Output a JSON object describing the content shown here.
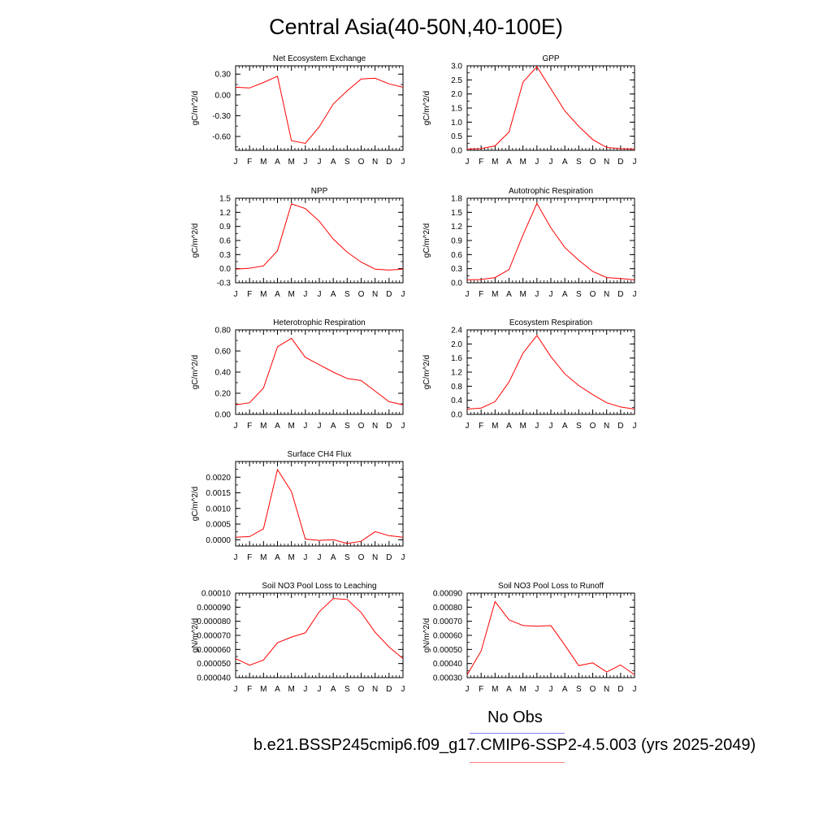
{
  "title": "Central Asia(40-50N,40-100E)",
  "legend": {
    "obs_label": "No Obs",
    "model_label": "b.e21.BSSP245cmip6.f09_g17.CMIP6-SSP2-4.5.003 (yrs 2025-2049)",
    "obs_color": "#8080ff",
    "model_color": "#ff8080"
  },
  "chart_data": [
    {
      "type": "line",
      "title": "Net Ecosystem Exchange",
      "ylabel": "gC/m^2/d",
      "categories": [
        "J",
        "F",
        "M",
        "A",
        "M",
        "J",
        "J",
        "A",
        "S",
        "O",
        "N",
        "D",
        "J"
      ],
      "yticks": [
        "0.30",
        "0.00",
        "-0.30",
        "-0.60"
      ],
      "ytick_values": [
        0.3,
        0.0,
        -0.3,
        -0.6
      ],
      "ylim": [
        -0.8,
        0.42
      ],
      "color": "#ff0000",
      "values": [
        0.11,
        0.1,
        0.18,
        0.27,
        -0.66,
        -0.7,
        -0.46,
        -0.13,
        0.06,
        0.23,
        0.24,
        0.16,
        0.11
      ]
    },
    {
      "type": "line",
      "title": "GPP",
      "ylabel": "gC/m^2/d",
      "categories": [
        "J",
        "F",
        "M",
        "A",
        "M",
        "J",
        "J",
        "A",
        "S",
        "O",
        "N",
        "D",
        "J"
      ],
      "yticks": [
        "3.0",
        "2.5",
        "2.0",
        "1.5",
        "1.0",
        "0.5",
        "0.0"
      ],
      "ytick_values": [
        3.0,
        2.5,
        2.0,
        1.5,
        1.0,
        0.5,
        0.0
      ],
      "ylim": [
        0,
        3.0
      ],
      "color": "#ff0000",
      "values": [
        0.04,
        0.06,
        0.16,
        0.65,
        2.42,
        2.97,
        2.18,
        1.4,
        0.85,
        0.38,
        0.1,
        0.06,
        0.04
      ]
    },
    {
      "type": "line",
      "title": "NPP",
      "ylabel": "gC/m^2/d",
      "categories": [
        "J",
        "F",
        "M",
        "A",
        "M",
        "J",
        "J",
        "A",
        "S",
        "O",
        "N",
        "D",
        "J"
      ],
      "yticks": [
        "1.5",
        "1.2",
        "0.9",
        "0.6",
        "0.3",
        "0.0",
        "-0.3"
      ],
      "ytick_values": [
        1.5,
        1.2,
        0.9,
        0.6,
        0.3,
        0.0,
        -0.3
      ],
      "ylim": [
        -0.3,
        1.5
      ],
      "color": "#ff0000",
      "values": [
        -0.01,
        0.01,
        0.06,
        0.38,
        1.38,
        1.28,
        1.01,
        0.63,
        0.35,
        0.14,
        -0.01,
        -0.03,
        -0.01
      ]
    },
    {
      "type": "line",
      "title": "Autotrophic Respiration",
      "ylabel": "gC/m^2/d",
      "categories": [
        "J",
        "F",
        "M",
        "A",
        "M",
        "J",
        "J",
        "A",
        "S",
        "O",
        "N",
        "D",
        "J"
      ],
      "yticks": [
        "1.8",
        "1.5",
        "1.2",
        "0.9",
        "0.6",
        "0.3",
        "0.0"
      ],
      "ytick_values": [
        1.8,
        1.5,
        1.2,
        0.9,
        0.6,
        0.3,
        0.0
      ],
      "ylim": [
        0,
        1.8
      ],
      "color": "#ff0000",
      "values": [
        0.06,
        0.07,
        0.11,
        0.28,
        1.02,
        1.69,
        1.17,
        0.75,
        0.48,
        0.24,
        0.11,
        0.09,
        0.06
      ]
    },
    {
      "type": "line",
      "title": "Heterotrophic Respiration",
      "ylabel": "gC/m^2/d",
      "categories": [
        "J",
        "F",
        "M",
        "A",
        "M",
        "J",
        "J",
        "A",
        "S",
        "O",
        "N",
        "D",
        "J"
      ],
      "yticks": [
        "0.80",
        "0.60",
        "0.40",
        "0.20",
        "0.00"
      ],
      "ytick_values": [
        0.8,
        0.6,
        0.4,
        0.2,
        0.0
      ],
      "ylim": [
        0,
        0.8
      ],
      "color": "#ff0000",
      "values": [
        0.09,
        0.11,
        0.25,
        0.64,
        0.72,
        0.54,
        0.47,
        0.4,
        0.34,
        0.32,
        0.22,
        0.12,
        0.09
      ]
    },
    {
      "type": "line",
      "title": "Ecosystem Respiration",
      "ylabel": "gC/m^2/d",
      "categories": [
        "J",
        "F",
        "M",
        "A",
        "M",
        "J",
        "J",
        "A",
        "S",
        "O",
        "N",
        "D",
        "J"
      ],
      "yticks": [
        "2.4",
        "2.0",
        "1.6",
        "1.2",
        "0.8",
        "0.4",
        "0.0"
      ],
      "ytick_values": [
        2.4,
        2.0,
        1.6,
        1.2,
        0.8,
        0.4,
        0.0
      ],
      "ylim": [
        0,
        2.4
      ],
      "color": "#ff0000",
      "values": [
        0.15,
        0.18,
        0.36,
        0.92,
        1.74,
        2.24,
        1.64,
        1.15,
        0.82,
        0.56,
        0.33,
        0.21,
        0.15
      ]
    },
    {
      "type": "line",
      "title": "Surface CH4 Flux",
      "ylabel": "gC/m^2/d",
      "categories": [
        "J",
        "F",
        "M",
        "A",
        "M",
        "J",
        "J",
        "A",
        "S",
        "O",
        "N",
        "D",
        "J"
      ],
      "yticks": [
        "0.0020",
        "0.0015",
        "0.0010",
        "0.0005",
        "0.0000"
      ],
      "ytick_values": [
        0.002,
        0.0015,
        0.001,
        0.0005,
        0.0
      ],
      "ylim": [
        -0.0002,
        0.0025
      ],
      "color": "#ff0000",
      "values": [
        8e-05,
        0.0001,
        0.00035,
        0.00224,
        0.00154,
        2e-05,
        -2e-05,
        0.0,
        -0.00012,
        -5e-05,
        0.00026,
        0.00013,
        8e-05
      ]
    },
    {
      "type": "line",
      "title": "Soil NO3 Pool Loss to Leaching",
      "ylabel": "gN/m^2/d",
      "categories": [
        "J",
        "F",
        "M",
        "A",
        "M",
        "J",
        "J",
        "A",
        "S",
        "O",
        "N",
        "D",
        "J"
      ],
      "yticks": [
        "0.00010",
        "0.000090",
        "0.000080",
        "0.000070",
        "0.000060",
        "0.000050",
        "0.000040"
      ],
      "ytick_values": [
        0.0001,
        9e-05,
        8e-05,
        7e-05,
        6e-05,
        5e-05,
        4e-05
      ],
      "ylim": [
        4e-05,
        0.0001
      ],
      "color": "#ff0000",
      "values": [
        5.35e-05,
        4.88e-05,
        5.25e-05,
        6.48e-05,
        6.88e-05,
        7.18e-05,
        8.68e-05,
        9.62e-05,
        9.55e-05,
        8.62e-05,
        7.22e-05,
        6.18e-05,
        5.35e-05
      ]
    },
    {
      "type": "line",
      "title": "Soil NO3 Pool Loss to Runoff",
      "ylabel": "gN/m^2/d",
      "categories": [
        "J",
        "F",
        "M",
        "A",
        "M",
        "J",
        "J",
        "A",
        "S",
        "O",
        "N",
        "D",
        "J"
      ],
      "yticks": [
        "0.00090",
        "0.00080",
        "0.00070",
        "0.00060",
        "0.00050",
        "0.00040",
        "0.00030"
      ],
      "ytick_values": [
        0.0009,
        0.0008,
        0.0007,
        0.0006,
        0.0005,
        0.0004,
        0.0003
      ],
      "ylim": [
        0.0003,
        0.0009
      ],
      "color": "#ff0000",
      "values": [
        0.00032,
        0.00049,
        0.00084,
        0.00071,
        0.00067,
        0.000665,
        0.00067,
        0.00053,
        0.000385,
        0.000405,
        0.00034,
        0.00039,
        0.00032
      ]
    }
  ]
}
